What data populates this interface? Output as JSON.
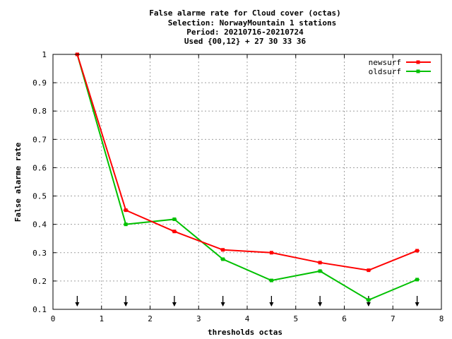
{
  "chart_data": {
    "type": "line",
    "title_lines": [
      "False alarme rate  for Cloud cover (octas)",
      "Selection: NorwayMountain      1 stations",
      "Period: 20210716-20210724",
      "Used {00,12} + 27 30 33 36"
    ],
    "xlabel": "thresholds octas",
    "ylabel": "False alarme rate",
    "xlim": [
      0,
      8
    ],
    "ylim": [
      0.1,
      1
    ],
    "xticks": [
      0,
      1,
      2,
      3,
      4,
      5,
      6,
      7,
      8
    ],
    "xtick_labels": [
      "0",
      "1",
      "2",
      "3",
      "4",
      "5",
      "6",
      "7",
      "8"
    ],
    "yticks": [
      0.1,
      0.2,
      0.3,
      0.4,
      0.5,
      0.6,
      0.7,
      0.8,
      0.9,
      1
    ],
    "ytick_labels": [
      "0.1",
      "0.2",
      "0.3",
      "0.4",
      "0.5",
      "0.6",
      "0.7",
      "0.8",
      "0.9",
      "1"
    ],
    "grid": true,
    "legend_position": "top-right",
    "x": [
      0.5,
      1.5,
      2.5,
      3.5,
      4.5,
      5.5,
      6.5,
      7.5
    ],
    "series": [
      {
        "name": "newsurf",
        "color": "#ff0000",
        "values": [
          1.0,
          0.45,
          0.375,
          0.31,
          0.3,
          0.265,
          0.238,
          0.307
        ]
      },
      {
        "name": "oldsurf",
        "color": "#00c000",
        "values": [
          1.0,
          0.4,
          0.418,
          0.277,
          0.202,
          0.235,
          0.133,
          0.205
        ]
      }
    ],
    "threshold_markers": [
      0.5,
      1.5,
      2.5,
      3.5,
      4.5,
      5.5,
      6.5,
      7.5
    ]
  }
}
